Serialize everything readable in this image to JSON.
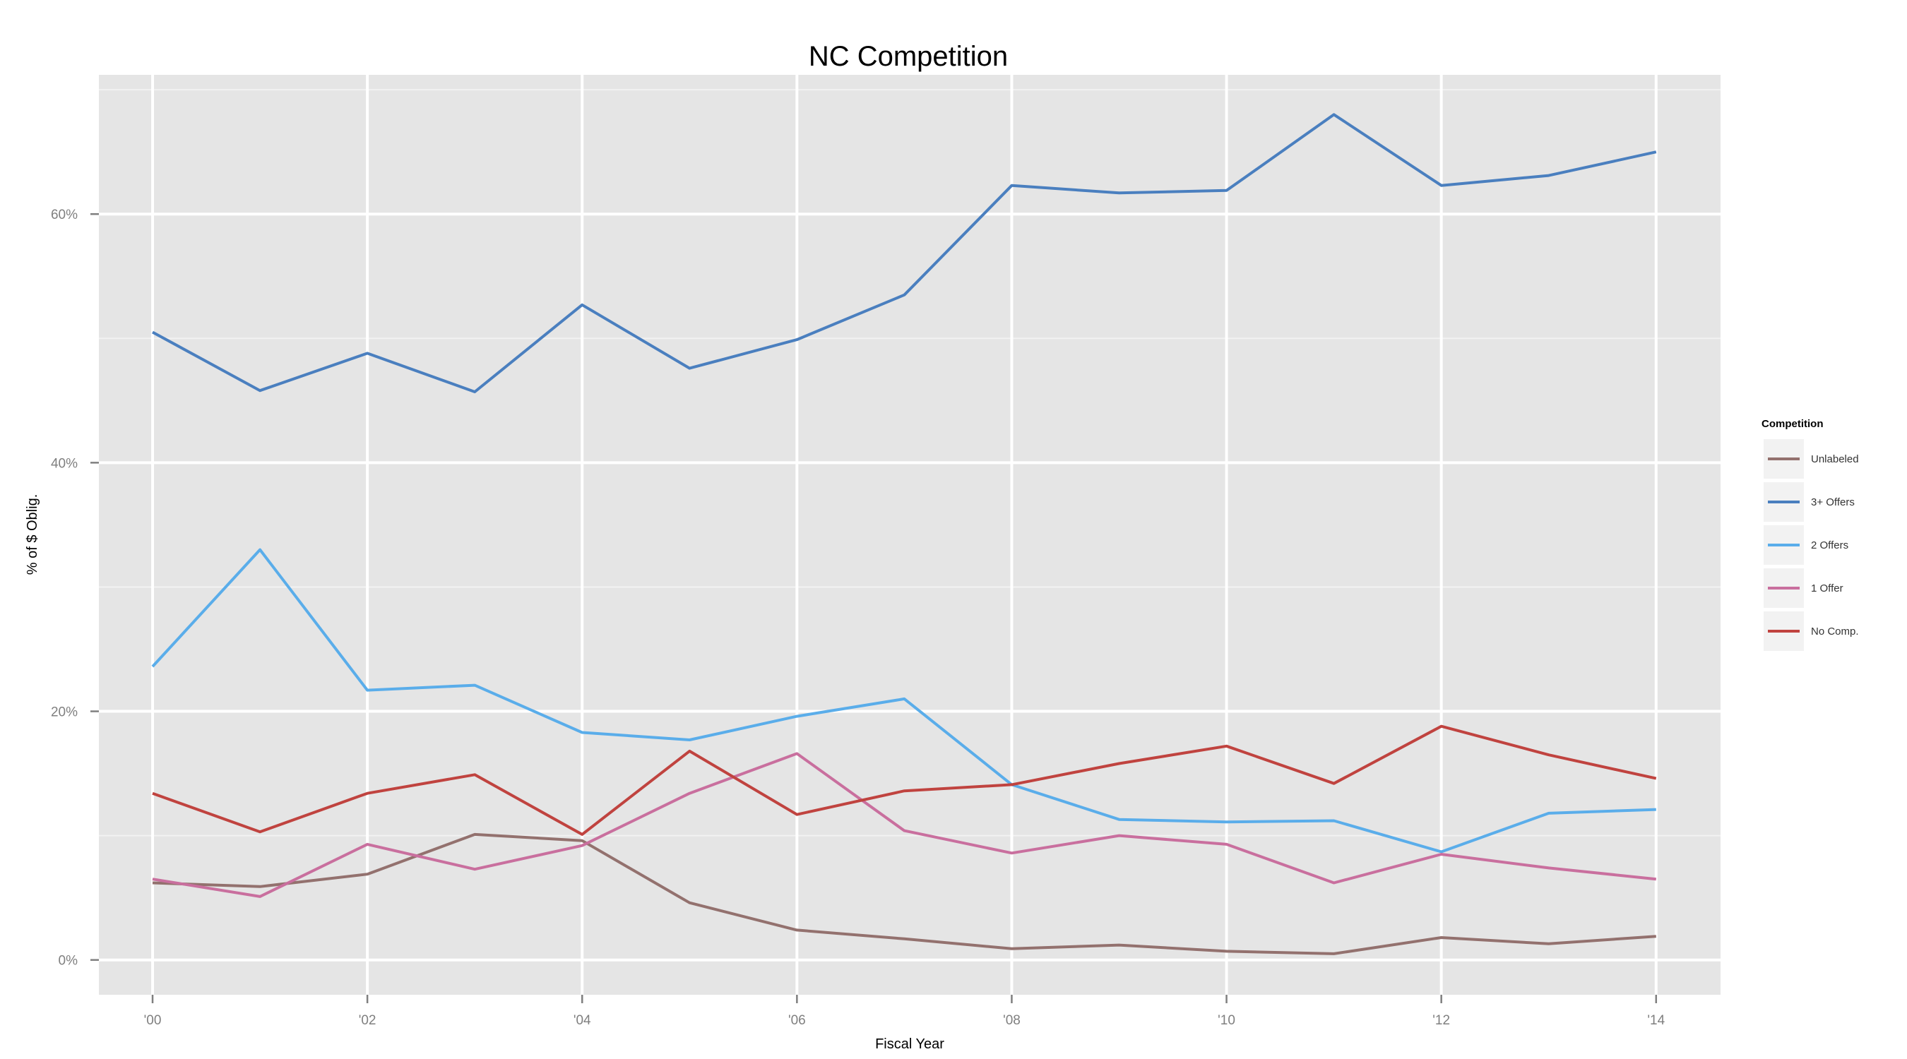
{
  "chart_data": {
    "type": "line",
    "title": "NC Competition",
    "xlabel": "Fiscal Year",
    "ylabel": "% of $ Oblig.",
    "x": [
      2000,
      2001,
      2002,
      2003,
      2004,
      2005,
      2006,
      2007,
      2008,
      2009,
      2010,
      2011,
      2012,
      2013,
      2014
    ],
    "x_ticks": [
      2000,
      2002,
      2004,
      2006,
      2008,
      2010,
      2012,
      2014
    ],
    "x_tick_labels": [
      "'00",
      "'02",
      "'04",
      "'06",
      "'08",
      "'10",
      "'12",
      "'14"
    ],
    "xlim": [
      1999.5,
      2014.6
    ],
    "y_ticks": [
      0,
      20,
      40,
      60
    ],
    "y_tick_labels": [
      "0%",
      "20%",
      "40%",
      "60%"
    ],
    "ylim": [
      -2.8,
      71.2
    ],
    "grid": true,
    "background": "#e5e5e5",
    "legend": {
      "title": "Competition",
      "position": "right",
      "entries": [
        "Unlabeled",
        "3+ Offers",
        "2 Offers",
        "1 Offer",
        "No Comp."
      ]
    },
    "series": [
      {
        "name": "Unlabeled",
        "color": "#93716e",
        "values": [
          6.2,
          5.9,
          6.9,
          10.1,
          9.6,
          4.6,
          2.4,
          1.7,
          0.9,
          1.2,
          0.7,
          0.5,
          1.8,
          1.3,
          1.9
        ]
      },
      {
        "name": "3+ Offers",
        "color": "#4a7fbf",
        "values": [
          50.5,
          45.8,
          48.8,
          45.7,
          52.7,
          47.6,
          49.9,
          53.5,
          62.3,
          61.7,
          61.9,
          68.0,
          62.3,
          63.1,
          65.0
        ]
      },
      {
        "name": "2 Offers",
        "color": "#5aadea",
        "values": [
          23.6,
          33.0,
          21.7,
          22.1,
          18.3,
          17.7,
          19.6,
          21.0,
          14.1,
          11.3,
          11.1,
          11.2,
          8.7,
          11.8,
          12.1
        ]
      },
      {
        "name": "1 Offer",
        "color": "#c96f9e",
        "values": [
          6.5,
          5.1,
          9.3,
          7.3,
          9.2,
          13.4,
          16.6,
          10.4,
          8.6,
          10.0,
          9.3,
          6.2,
          8.5,
          7.4,
          6.5
        ]
      },
      {
        "name": "No Comp.",
        "color": "#c0433f",
        "values": [
          13.4,
          10.3,
          13.4,
          14.9,
          10.1,
          16.8,
          11.7,
          13.6,
          14.1,
          15.8,
          17.2,
          14.2,
          18.8,
          16.5,
          14.6
        ]
      }
    ]
  }
}
